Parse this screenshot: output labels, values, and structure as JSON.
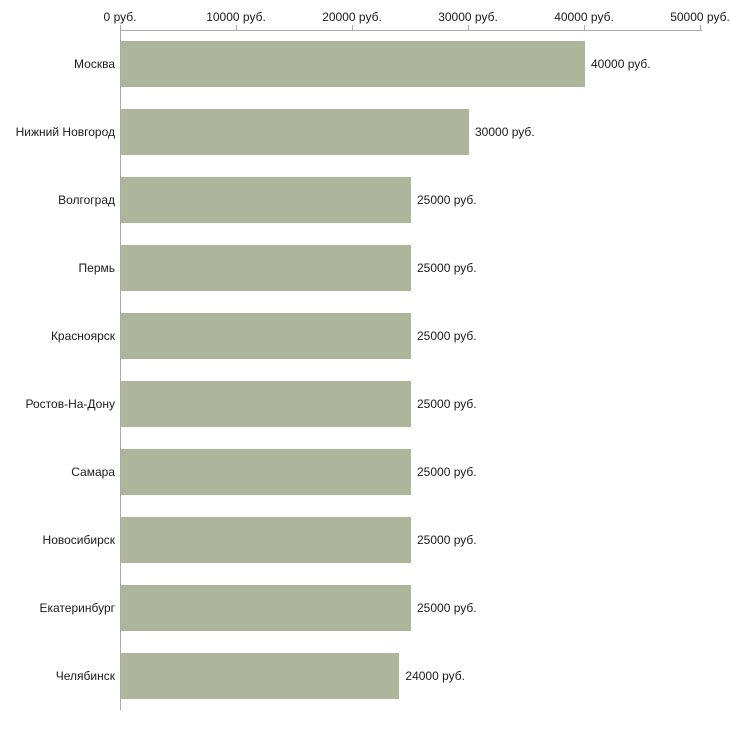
{
  "chart_data": {
    "type": "bar",
    "orientation": "horizontal",
    "title": "",
    "xlabel": "",
    "ylabel": "",
    "categories": [
      "Москва",
      "Нижний Новгород",
      "Волгоград",
      "Пермь",
      "Красноярск",
      "Ростов-На-Дону",
      "Самара",
      "Новосибирск",
      "Екатеринбург",
      "Челябинск"
    ],
    "values": [
      40000,
      30000,
      25000,
      25000,
      25000,
      25000,
      25000,
      25000,
      25000,
      24000
    ],
    "value_labels": [
      "40000 руб.",
      "30000 руб.",
      "25000 руб.",
      "25000 руб.",
      "25000 руб.",
      "25000 руб.",
      "25000 руб.",
      "25000 руб.",
      "25000 руб.",
      "24000 руб."
    ],
    "x_ticks": [
      0,
      10000,
      20000,
      30000,
      40000,
      50000
    ],
    "x_tick_labels": [
      "0 руб.",
      "10000 руб.",
      "20000 руб.",
      "30000 руб.",
      "40000 руб.",
      "50000 руб."
    ],
    "xlim": [
      0,
      50000
    ],
    "grid": false,
    "legend": "none",
    "colors": {
      "bar": "#adb69b",
      "axis": "#aaaaaa",
      "text": "#1a1a1a",
      "background": "#ffffff"
    }
  }
}
